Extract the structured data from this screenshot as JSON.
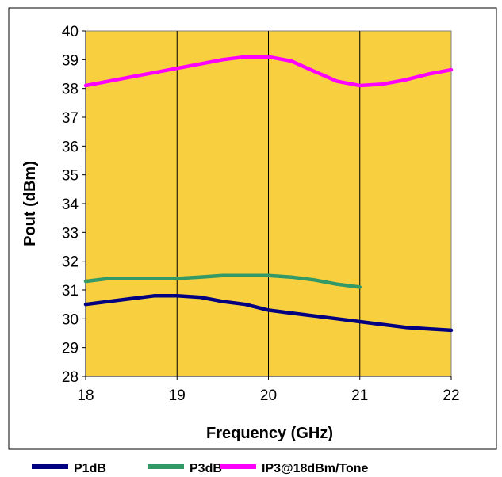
{
  "chart_data": {
    "type": "line",
    "title": "",
    "xlabel": "Frequency (GHz)",
    "ylabel": "Pout (dBm)",
    "xlim": [
      18,
      22
    ],
    "ylim": [
      28,
      40
    ],
    "x_ticks": [
      "18",
      "19",
      "20",
      "21",
      "22"
    ],
    "y_ticks": [
      "28",
      "29",
      "30",
      "31",
      "32",
      "33",
      "34",
      "35",
      "36",
      "37",
      "38",
      "39",
      "40"
    ],
    "grid": "vertical",
    "legend_position": "bottom",
    "plot_background": "#F7CF3F",
    "series": [
      {
        "name": "P1dB",
        "color": "#000080",
        "x": [
          18,
          18.25,
          18.5,
          18.75,
          19,
          19.25,
          19.5,
          19.75,
          20,
          20.25,
          20.5,
          20.75,
          21,
          21.25,
          21.5,
          21.75,
          22
        ],
        "y": [
          30.5,
          30.6,
          30.7,
          30.8,
          30.8,
          30.75,
          30.6,
          30.5,
          30.3,
          30.2,
          30.1,
          30.0,
          29.9,
          29.8,
          29.7,
          29.65,
          29.6
        ]
      },
      {
        "name": "P3dB",
        "color": "#339966",
        "x": [
          18,
          18.25,
          18.5,
          18.75,
          19,
          19.25,
          19.5,
          19.75,
          20,
          20.25,
          20.5,
          20.75,
          21
        ],
        "y": [
          31.3,
          31.4,
          31.4,
          31.4,
          31.4,
          31.45,
          31.5,
          31.5,
          31.5,
          31.45,
          31.35,
          31.2,
          31.1
        ]
      },
      {
        "name": "IP3@18dBm/Tone",
        "color": "#FF00FF",
        "x": [
          18,
          18.25,
          18.5,
          18.75,
          19,
          19.25,
          19.5,
          19.75,
          20,
          20.25,
          20.5,
          20.75,
          21,
          21.25,
          21.5,
          21.75,
          22
        ],
        "y": [
          38.1,
          38.25,
          38.4,
          38.55,
          38.7,
          38.85,
          39.0,
          39.1,
          39.1,
          38.95,
          38.6,
          38.25,
          38.1,
          38.15,
          38.3,
          38.5,
          38.65
        ]
      }
    ]
  }
}
